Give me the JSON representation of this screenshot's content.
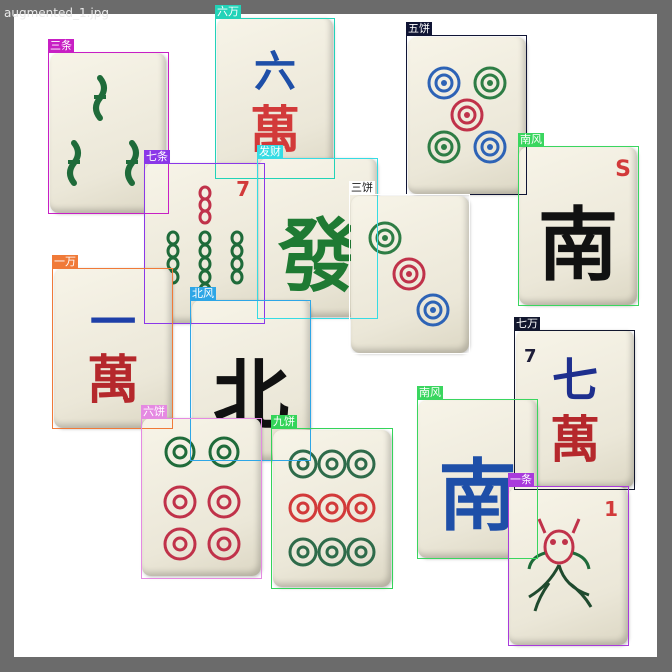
{
  "file_name": "augmented_1.jpg",
  "detections": [
    {
      "id": "sanjiao",
      "label": "三条",
      "color": "#c81fc4"
    },
    {
      "id": "liuwan",
      "label": "六万",
      "color": "#22d3b8"
    },
    {
      "id": "wubing",
      "label": "五饼",
      "color": "#101535"
    },
    {
      "id": "qitiao",
      "label": "七条",
      "color": "#8b38e8"
    },
    {
      "id": "facai",
      "label": "发财",
      "color": "#36dce4"
    },
    {
      "id": "sanbing",
      "label": "三饼",
      "color": "#1a1a1a"
    },
    {
      "id": "nanfeng-1",
      "label": "南风",
      "color": "#3ad65f"
    },
    {
      "id": "yiwan",
      "label": "一万",
      "color": "#f07a38"
    },
    {
      "id": "beifeng",
      "label": "北风",
      "color": "#2ea6e6"
    },
    {
      "id": "qiwan",
      "label": "七万",
      "color": "#12172e"
    },
    {
      "id": "liubing",
      "label": "六饼",
      "color": "#e58ae2"
    },
    {
      "id": "jiubing",
      "label": "九饼",
      "color": "#34d45a"
    },
    {
      "id": "nanfeng-2",
      "label": "南风",
      "color": "#3ad65f"
    },
    {
      "id": "yitiao",
      "label": "一条",
      "color": "#a93adc"
    }
  ],
  "tiles": {
    "liuwan": {
      "top": "六",
      "bottom": "萬"
    },
    "yiwan": {
      "top": "一",
      "bottom": "萬"
    },
    "qiwan": {
      "top": "七",
      "bottom": "萬",
      "corner": "7"
    },
    "qitiao": {
      "corner": "7"
    },
    "nanfeng_1": {
      "glyph": "南",
      "corner": "S"
    },
    "nanfeng_2": {
      "glyph": "南"
    },
    "beifeng": {
      "glyph": "北"
    },
    "facai": {
      "glyph": "發"
    },
    "yitiao": {
      "corner": "1"
    }
  }
}
